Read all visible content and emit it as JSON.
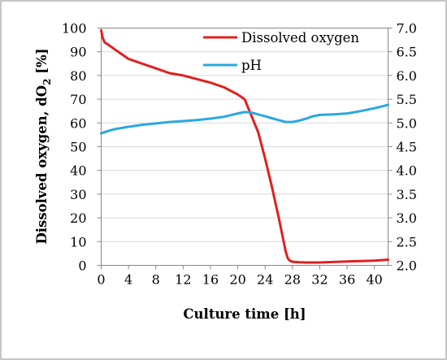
{
  "chart_data": {
    "type": "line",
    "xlabel": "Culture time [h]",
    "ylabel_left_main": "Dissolved oxygen, dO",
    "ylabel_left_sub": "2",
    "ylabel_left_tail": " [%]",
    "x_ticks": [
      "0",
      "4",
      "8",
      "12",
      "16",
      "20",
      "24",
      "28",
      "32",
      "36",
      "40"
    ],
    "y_left_ticks": [
      "0",
      "10",
      "20",
      "30",
      "40",
      "50",
      "60",
      "70",
      "80",
      "90",
      "100"
    ],
    "y_right_ticks": [
      "2.0",
      "2.5",
      "3.0",
      "3.5",
      "4.0",
      "4.5",
      "5.0",
      "5.5",
      "6.0",
      "6.5",
      "7.0"
    ],
    "xlim": [
      0,
      42
    ],
    "ylim_left": [
      0,
      100
    ],
    "ylim_right": [
      2.0,
      7.0
    ],
    "legend_position": "top-right",
    "series": [
      {
        "name": "Dissolved oxygen",
        "axis": "left",
        "color": "#e02020",
        "x": [
          0,
          0.2,
          0.5,
          1,
          2,
          3,
          4,
          6,
          8,
          10,
          12,
          14,
          16,
          18,
          19,
          20,
          21,
          22,
          23,
          24,
          25,
          26,
          26.5,
          27,
          27.3,
          27.6,
          28,
          29,
          30,
          32,
          34,
          36,
          38,
          40,
          41,
          42
        ],
        "values": [
          99,
          96,
          94,
          93,
          91,
          89,
          87,
          85,
          83,
          81,
          80,
          78.5,
          77,
          75,
          73.5,
          72,
          70,
          63,
          56,
          45,
          33,
          20,
          13,
          6,
          3,
          2,
          1.5,
          1.3,
          1.2,
          1.2,
          1.4,
          1.6,
          1.8,
          2.0,
          2.2,
          2.4
        ]
      },
      {
        "name": "pH",
        "axis": "right",
        "color": "#2aa8e0",
        "x": [
          0,
          1,
          2,
          4,
          6,
          8,
          10,
          12,
          14,
          16,
          18,
          20,
          21,
          22,
          23,
          24,
          25,
          26,
          27,
          28,
          29,
          30,
          31,
          32,
          34,
          36,
          38,
          40,
          42
        ],
        "values": [
          4.78,
          4.83,
          4.87,
          4.92,
          4.96,
          4.99,
          5.02,
          5.04,
          5.06,
          5.09,
          5.13,
          5.2,
          5.23,
          5.22,
          5.18,
          5.14,
          5.1,
          5.06,
          5.02,
          5.02,
          5.05,
          5.09,
          5.14,
          5.17,
          5.18,
          5.2,
          5.25,
          5.31,
          5.38
        ]
      }
    ]
  }
}
